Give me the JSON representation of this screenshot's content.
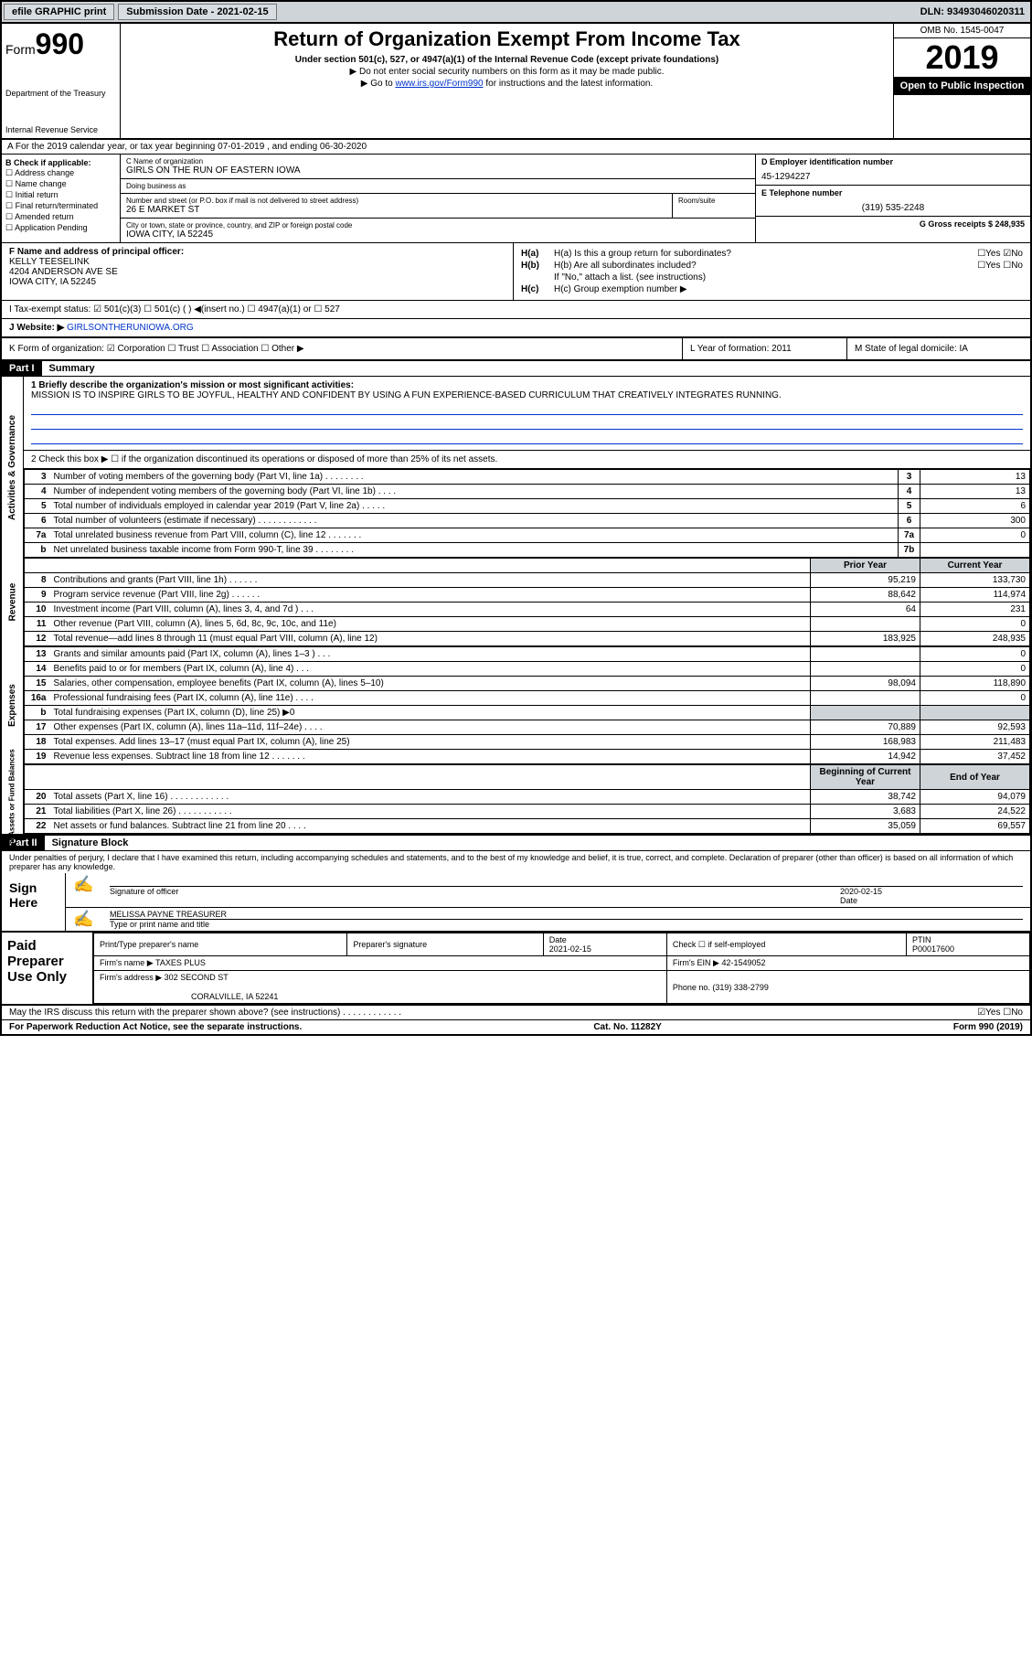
{
  "topbar": {
    "efile": "efile GRAPHIC print",
    "submission_label": "Submission Date - 2021-02-15",
    "dln": "DLN: 93493046020311"
  },
  "header": {
    "form_label": "Form",
    "form_number": "990",
    "dept": "Department of the Treasury",
    "irs": "Internal Revenue Service",
    "title": "Return of Organization Exempt From Income Tax",
    "subtitle": "Under section 501(c), 527, or 4947(a)(1) of the Internal Revenue Code (except private foundations)",
    "note1": "▶ Do not enter social security numbers on this form as it may be made public.",
    "note2_pre": "▶ Go to ",
    "note2_link": "www.irs.gov/Form990",
    "note2_post": " for instructions and the latest information.",
    "omb": "OMB No. 1545-0047",
    "year": "2019",
    "inspection": "Open to Public Inspection"
  },
  "lineA": "A For the 2019 calendar year, or tax year beginning 07-01-2019   , and ending 06-30-2020",
  "colB": {
    "title": "B Check if applicable:",
    "items": [
      "☐ Address change",
      "☐ Name change",
      "☐ Initial return",
      "☐ Final return/terminated",
      "☐ Amended return",
      "☐ Application Pending"
    ]
  },
  "colC": {
    "name_lbl": "C Name of organization",
    "name": "GIRLS ON THE RUN OF EASTERN IOWA",
    "dba_lbl": "Doing business as",
    "dba": "",
    "addr_lbl": "Number and street (or P.O. box if mail is not delivered to street address)",
    "addr": "26 E MARKET ST",
    "room_lbl": "Room/suite",
    "city_lbl": "City or town, state or province, country, and ZIP or foreign postal code",
    "city": "IOWA CITY, IA  52245"
  },
  "colD": {
    "ein_lbl": "D Employer identification number",
    "ein": "45-1294227",
    "tel_lbl": "E Telephone number",
    "tel": "(319) 535-2248",
    "gross_lbl": "G Gross receipts $ 248,935"
  },
  "rowF": {
    "lbl": "F  Name and address of principal officer:",
    "name": "KELLY TEESELINK",
    "addr1": "4204 ANDERSON AVE SE",
    "addr2": "IOWA CITY, IA  52245"
  },
  "rowH": {
    "ha": "H(a)  Is this a group return for subordinates?",
    "ha_ans": "☐Yes ☑No",
    "hb": "H(b)  Are all subordinates included?",
    "hb_ans": "☐Yes ☐No",
    "hb_note": "If \"No,\" attach a list. (see instructions)",
    "hc": "H(c)  Group exemption number ▶"
  },
  "rowI": "I  Tax-exempt status:    ☑ 501(c)(3)   ☐ 501(c) (  ) ◀(insert no.)    ☐ 4947(a)(1) or   ☐ 527",
  "rowJ_lbl": "J  Website: ▶ ",
  "rowJ_val": "GIRLSONTHERUNIOWA.ORG",
  "rowK": "K Form of organization:  ☑ Corporation  ☐ Trust  ☐ Association  ☐ Other ▶",
  "rowL": "L Year of formation: 2011",
  "rowM": "M State of legal domicile: IA",
  "part1": {
    "header": "Part I",
    "title": "Summary",
    "mission_lbl": "1  Briefly describe the organization's mission or most significant activities:",
    "mission": "MISSION IS TO INSPIRE GIRLS TO BE JOYFUL, HEALTHY AND CONFIDENT BY USING A FUN EXPERIENCE-BASED CURRICULUM THAT CREATIVELY INTEGRATES RUNNING.",
    "line2": "2   Check this box ▶ ☐  if the organization discontinued its operations or disposed of more than 25% of its net assets.",
    "sidebar_ag": "Activities & Governance",
    "sidebar_rev": "Revenue",
    "sidebar_exp": "Expenses",
    "sidebar_na": "Net Assets or Fund Balances",
    "rows_ag": [
      {
        "n": "3",
        "d": "Number of voting members of the governing body (Part VI, line 1a)   .   .   .   .   .   .   .   .",
        "i": "3",
        "v": "13"
      },
      {
        "n": "4",
        "d": "Number of independent voting members of the governing body (Part VI, line 1b)   .   .   .   .",
        "i": "4",
        "v": "13"
      },
      {
        "n": "5",
        "d": "Total number of individuals employed in calendar year 2019 (Part V, line 2a)   .   .   .   .   .",
        "i": "5",
        "v": "6"
      },
      {
        "n": "6",
        "d": "Total number of volunteers (estimate if necessary)   .   .   .   .   .   .   .   .   .   .   .   .",
        "i": "6",
        "v": "300"
      },
      {
        "n": "7a",
        "d": "Total unrelated business revenue from Part VIII, column (C), line 12   .   .   .   .   .   .   .",
        "i": "7a",
        "v": "0"
      },
      {
        "n": "b",
        "d": "Net unrelated business taxable income from Form 990-T, line 39   .   .   .   .   .   .   .   .",
        "i": "7b",
        "v": ""
      }
    ],
    "hdr_prior": "Prior Year",
    "hdr_curr": "Current Year",
    "rows_rev": [
      {
        "n": "8",
        "d": "Contributions and grants (Part VIII, line 1h)   .   .   .   .   .   .",
        "p": "95,219",
        "c": "133,730"
      },
      {
        "n": "9",
        "d": "Program service revenue (Part VIII, line 2g)   .   .   .   .   .   .",
        "p": "88,642",
        "c": "114,974"
      },
      {
        "n": "10",
        "d": "Investment income (Part VIII, column (A), lines 3, 4, and 7d )   .   .   .",
        "p": "64",
        "c": "231"
      },
      {
        "n": "11",
        "d": "Other revenue (Part VIII, column (A), lines 5, 6d, 8c, 9c, 10c, and 11e)",
        "p": "",
        "c": "0"
      },
      {
        "n": "12",
        "d": "Total revenue—add lines 8 through 11 (must equal Part VIII, column (A), line 12)",
        "p": "183,925",
        "c": "248,935"
      }
    ],
    "rows_exp": [
      {
        "n": "13",
        "d": "Grants and similar amounts paid (Part IX, column (A), lines 1–3 )   .   .   .",
        "p": "",
        "c": "0"
      },
      {
        "n": "14",
        "d": "Benefits paid to or for members (Part IX, column (A), line 4)   .   .   .",
        "p": "",
        "c": "0"
      },
      {
        "n": "15",
        "d": "Salaries, other compensation, employee benefits (Part IX, column (A), lines 5–10)",
        "p": "98,094",
        "c": "118,890"
      },
      {
        "n": "16a",
        "d": "Professional fundraising fees (Part IX, column (A), line 11e)   .   .   .   .",
        "p": "",
        "c": "0"
      },
      {
        "n": "b",
        "d": "Total fundraising expenses (Part IX, column (D), line 25) ▶0",
        "p": "shade",
        "c": "shade"
      },
      {
        "n": "17",
        "d": "Other expenses (Part IX, column (A), lines 11a–11d, 11f–24e)   .   .   .   .",
        "p": "70,889",
        "c": "92,593"
      },
      {
        "n": "18",
        "d": "Total expenses. Add lines 13–17 (must equal Part IX, column (A), line 25)",
        "p": "168,983",
        "c": "211,483"
      },
      {
        "n": "19",
        "d": "Revenue less expenses. Subtract line 18 from line 12   .   .   .   .   .   .   .",
        "p": "14,942",
        "c": "37,452"
      }
    ],
    "hdr_beg": "Beginning of Current Year",
    "hdr_end": "End of Year",
    "rows_na": [
      {
        "n": "20",
        "d": "Total assets (Part X, line 16)   .   .   .   .   .   .   .   .   .   .   .   .",
        "p": "38,742",
        "c": "94,079"
      },
      {
        "n": "21",
        "d": "Total liabilities (Part X, line 26)   .   .   .   .   .   .   .   .   .   .   .",
        "p": "3,683",
        "c": "24,522"
      },
      {
        "n": "22",
        "d": "Net assets or fund balances. Subtract line 21 from line 20   .   .   .   .",
        "p": "35,059",
        "c": "69,557"
      }
    ]
  },
  "part2": {
    "header": "Part II",
    "title": "Signature Block",
    "penalties": "Under penalties of perjury, I declare that I have examined this return, including accompanying schedules and statements, and to the best of my knowledge and belief, it is true, correct, and complete. Declaration of preparer (other than officer) is based on all information of which preparer has any knowledge.",
    "sign_here": "Sign Here",
    "sig_officer": "Signature of officer",
    "date": "2020-02-15",
    "date_lbl": "Date",
    "name_title": "MELISSA PAYNE  TREASURER",
    "name_title_lbl": "Type or print name and title",
    "paid": "Paid Preparer Use Only",
    "prep_name_lbl": "Print/Type preparer's name",
    "prep_sig_lbl": "Preparer's signature",
    "prep_date_lbl": "Date",
    "prep_date": "2021-02-15",
    "check_self": "Check ☐ if self-employed",
    "ptin_lbl": "PTIN",
    "ptin": "P00017600",
    "firm_name_lbl": "Firm's name    ▶",
    "firm_name": "TAXES PLUS",
    "firm_ein_lbl": "Firm's EIN ▶",
    "firm_ein": "42-1549052",
    "firm_addr_lbl": "Firm's address ▶",
    "firm_addr1": "302 SECOND ST",
    "firm_addr2": "CORALVILLE, IA  52241",
    "phone_lbl": "Phone no.",
    "phone": "(319) 338-2799",
    "discuss": "May the IRS discuss this return with the preparer shown above? (see instructions)   .   .   .   .   .   .   .   .   .   .   .   .",
    "discuss_ans": "☑Yes  ☐No"
  },
  "footer": {
    "left": "For Paperwork Reduction Act Notice, see the separate instructions.",
    "mid": "Cat. No. 11282Y",
    "right": "Form 990 (2019)"
  }
}
